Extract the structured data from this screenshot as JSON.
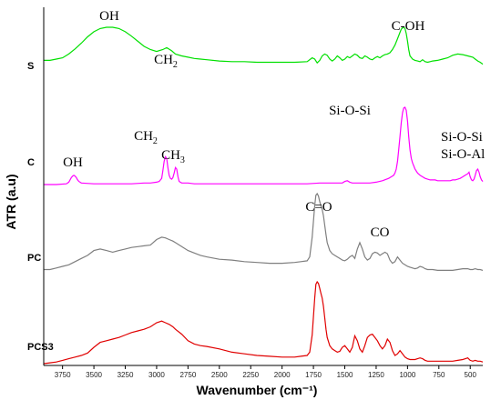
{
  "chart_data": {
    "type": "line",
    "title": "",
    "xlabel": "Wavenumber (cm⁻¹)",
    "ylabel": "ATR (a.u)",
    "x_reversed": true,
    "xlim": [
      3900,
      400
    ],
    "xticks": [
      3750,
      3500,
      3250,
      3000,
      2750,
      2500,
      2250,
      2000,
      1750,
      1500,
      1250,
      1000,
      750,
      500
    ],
    "grid": false,
    "series": [
      {
        "name": "S",
        "color": "#00e000",
        "x": [
          3900,
          3850,
          3800,
          3750,
          3700,
          3650,
          3600,
          3550,
          3500,
          3450,
          3400,
          3350,
          3300,
          3250,
          3200,
          3150,
          3100,
          3050,
          3000,
          2950,
          2920,
          2880,
          2850,
          2800,
          2750,
          2700,
          2650,
          2600,
          2500,
          2400,
          2300,
          2200,
          2100,
          2000,
          1900,
          1800,
          1760,
          1740,
          1720,
          1700,
          1680,
          1660,
          1640,
          1620,
          1600,
          1580,
          1560,
          1540,
          1520,
          1500,
          1480,
          1460,
          1440,
          1420,
          1400,
          1380,
          1360,
          1340,
          1320,
          1300,
          1280,
          1260,
          1240,
          1220,
          1200,
          1180,
          1160,
          1140,
          1120,
          1100,
          1080,
          1060,
          1050,
          1040,
          1030,
          1020,
          1010,
          1000,
          990,
          980,
          960,
          940,
          920,
          900,
          880,
          860,
          840,
          820,
          800,
          760,
          720,
          680,
          640,
          600,
          560,
          520,
          480,
          460,
          440,
          420,
          400
        ],
        "values": [
          0.48,
          0.48,
          0.5,
          0.52,
          0.58,
          0.66,
          0.75,
          0.85,
          0.93,
          0.98,
          1.0,
          1.0,
          0.98,
          0.93,
          0.86,
          0.78,
          0.7,
          0.65,
          0.62,
          0.65,
          0.68,
          0.63,
          0.58,
          0.55,
          0.53,
          0.51,
          0.5,
          0.49,
          0.47,
          0.46,
          0.46,
          0.45,
          0.45,
          0.45,
          0.45,
          0.46,
          0.52,
          0.5,
          0.44,
          0.48,
          0.55,
          0.58,
          0.56,
          0.5,
          0.47,
          0.5,
          0.55,
          0.52,
          0.48,
          0.5,
          0.54,
          0.52,
          0.55,
          0.58,
          0.56,
          0.52,
          0.51,
          0.55,
          0.53,
          0.5,
          0.49,
          0.52,
          0.54,
          0.52,
          0.55,
          0.57,
          0.58,
          0.6,
          0.65,
          0.72,
          0.82,
          0.92,
          0.97,
          0.99,
          1.0,
          0.98,
          0.9,
          0.78,
          0.65,
          0.55,
          0.5,
          0.48,
          0.47,
          0.46,
          0.49,
          0.46,
          0.45,
          0.46,
          0.47,
          0.48,
          0.5,
          0.52,
          0.56,
          0.58,
          0.57,
          0.55,
          0.53,
          0.5,
          0.47,
          0.45,
          0.42
        ]
      },
      {
        "name": "C",
        "color": "#ff00ff",
        "x": [
          3900,
          3800,
          3720,
          3700,
          3690,
          3680,
          3670,
          3660,
          3650,
          3640,
          3630,
          3620,
          3600,
          3500,
          3400,
          3300,
          3200,
          3100,
          3050,
          3000,
          2980,
          2960,
          2950,
          2940,
          2930,
          2920,
          2910,
          2900,
          2890,
          2880,
          2870,
          2860,
          2850,
          2840,
          2830,
          2820,
          2800,
          2750,
          2700,
          2600,
          2500,
          2400,
          2300,
          2200,
          2100,
          2000,
          1900,
          1800,
          1700,
          1600,
          1520,
          1500,
          1480,
          1460,
          1440,
          1400,
          1300,
          1250,
          1200,
          1150,
          1130,
          1110,
          1100,
          1090,
          1080,
          1070,
          1060,
          1050,
          1040,
          1030,
          1020,
          1010,
          1000,
          990,
          980,
          970,
          960,
          950,
          940,
          920,
          900,
          880,
          860,
          840,
          820,
          800,
          780,
          760,
          740,
          720,
          700,
          680,
          660,
          640,
          620,
          600,
          580,
          560,
          540,
          520,
          510,
          500,
          490,
          480,
          470,
          460,
          450,
          440,
          430,
          420,
          410,
          400
        ],
        "values": [
          0.0,
          0.0,
          0.01,
          0.03,
          0.06,
          0.09,
          0.11,
          0.12,
          0.11,
          0.09,
          0.06,
          0.04,
          0.02,
          0.01,
          0.01,
          0.01,
          0.01,
          0.02,
          0.02,
          0.03,
          0.04,
          0.08,
          0.18,
          0.3,
          0.36,
          0.34,
          0.22,
          0.12,
          0.08,
          0.07,
          0.09,
          0.15,
          0.22,
          0.2,
          0.1,
          0.04,
          0.02,
          0.02,
          0.01,
          0.01,
          0.01,
          0.01,
          0.01,
          0.01,
          0.01,
          0.01,
          0.01,
          0.01,
          0.02,
          0.02,
          0.02,
          0.04,
          0.05,
          0.03,
          0.02,
          0.02,
          0.02,
          0.03,
          0.05,
          0.08,
          0.1,
          0.12,
          0.15,
          0.2,
          0.3,
          0.45,
          0.62,
          0.8,
          0.93,
          0.99,
          1.0,
          0.96,
          0.82,
          0.62,
          0.45,
          0.34,
          0.28,
          0.24,
          0.2,
          0.15,
          0.12,
          0.1,
          0.08,
          0.07,
          0.06,
          0.06,
          0.06,
          0.05,
          0.05,
          0.05,
          0.05,
          0.05,
          0.05,
          0.06,
          0.06,
          0.07,
          0.08,
          0.1,
          0.12,
          0.14,
          0.16,
          0.1,
          0.06,
          0.05,
          0.07,
          0.12,
          0.18,
          0.2,
          0.16,
          0.1,
          0.06,
          0.04
        ]
      },
      {
        "name": "PC",
        "color": "#7f7f7f",
        "x": [
          3900,
          3850,
          3800,
          3750,
          3700,
          3650,
          3600,
          3550,
          3500,
          3450,
          3400,
          3350,
          3300,
          3250,
          3200,
          3150,
          3100,
          3050,
          3000,
          2960,
          2930,
          2900,
          2870,
          2850,
          2800,
          2750,
          2700,
          2650,
          2600,
          2500,
          2400,
          2300,
          2200,
          2100,
          2000,
          1900,
          1850,
          1800,
          1780,
          1760,
          1740,
          1730,
          1720,
          1710,
          1700,
          1690,
          1680,
          1670,
          1660,
          1650,
          1640,
          1620,
          1600,
          1580,
          1560,
          1540,
          1520,
          1500,
          1480,
          1460,
          1440,
          1420,
          1400,
          1380,
          1360,
          1340,
          1320,
          1300,
          1280,
          1260,
          1240,
          1220,
          1200,
          1180,
          1160,
          1140,
          1120,
          1100,
          1080,
          1060,
          1040,
          1020,
          1000,
          980,
          960,
          940,
          920,
          900,
          880,
          860,
          840,
          820,
          800,
          760,
          720,
          680,
          640,
          600,
          560,
          520,
          500,
          480,
          460,
          440,
          420,
          400
        ],
        "values": [
          0.04,
          0.04,
          0.06,
          0.08,
          0.1,
          0.14,
          0.18,
          0.22,
          0.28,
          0.3,
          0.28,
          0.26,
          0.28,
          0.3,
          0.32,
          0.33,
          0.34,
          0.35,
          0.42,
          0.45,
          0.44,
          0.42,
          0.4,
          0.38,
          0.33,
          0.28,
          0.25,
          0.22,
          0.2,
          0.17,
          0.16,
          0.14,
          0.13,
          0.12,
          0.12,
          0.13,
          0.14,
          0.15,
          0.2,
          0.45,
          0.85,
          0.98,
          1.0,
          0.97,
          0.9,
          0.85,
          0.8,
          0.72,
          0.6,
          0.48,
          0.38,
          0.28,
          0.24,
          0.22,
          0.2,
          0.18,
          0.16,
          0.15,
          0.17,
          0.2,
          0.22,
          0.18,
          0.3,
          0.38,
          0.3,
          0.2,
          0.16,
          0.18,
          0.24,
          0.26,
          0.25,
          0.22,
          0.24,
          0.26,
          0.24,
          0.16,
          0.12,
          0.14,
          0.2,
          0.16,
          0.12,
          0.1,
          0.08,
          0.07,
          0.06,
          0.05,
          0.06,
          0.08,
          0.07,
          0.05,
          0.04,
          0.04,
          0.04,
          0.03,
          0.03,
          0.03,
          0.03,
          0.04,
          0.05,
          0.05,
          0.04,
          0.04,
          0.05,
          0.04,
          0.04,
          0.03
        ]
      },
      {
        "name": "PCS3",
        "color": "#e00000",
        "x": [
          3900,
          3850,
          3800,
          3750,
          3700,
          3650,
          3600,
          3550,
          3500,
          3450,
          3400,
          3350,
          3300,
          3250,
          3200,
          3150,
          3100,
          3050,
          3000,
          2960,
          2930,
          2900,
          2870,
          2850,
          2800,
          2750,
          2700,
          2650,
          2600,
          2500,
          2400,
          2300,
          2200,
          2100,
          2000,
          1900,
          1850,
          1800,
          1780,
          1760,
          1740,
          1730,
          1720,
          1710,
          1700,
          1690,
          1680,
          1670,
          1660,
          1650,
          1640,
          1620,
          1600,
          1580,
          1560,
          1540,
          1520,
          1500,
          1480,
          1460,
          1440,
          1420,
          1400,
          1380,
          1360,
          1340,
          1320,
          1300,
          1280,
          1260,
          1240,
          1220,
          1200,
          1180,
          1160,
          1140,
          1120,
          1100,
          1080,
          1060,
          1040,
          1020,
          1000,
          980,
          960,
          940,
          920,
          900,
          880,
          860,
          840,
          820,
          800,
          760,
          720,
          680,
          640,
          600,
          560,
          520,
          500,
          480,
          460,
          440,
          420,
          400
        ],
        "values": [
          0.0,
          0.01,
          0.02,
          0.04,
          0.06,
          0.08,
          0.1,
          0.13,
          0.2,
          0.26,
          0.28,
          0.3,
          0.32,
          0.35,
          0.38,
          0.4,
          0.42,
          0.45,
          0.5,
          0.52,
          0.5,
          0.48,
          0.45,
          0.42,
          0.36,
          0.28,
          0.24,
          0.22,
          0.21,
          0.18,
          0.14,
          0.12,
          0.1,
          0.09,
          0.08,
          0.08,
          0.09,
          0.1,
          0.14,
          0.35,
          0.8,
          0.97,
          1.0,
          0.98,
          0.92,
          0.86,
          0.8,
          0.7,
          0.56,
          0.42,
          0.32,
          0.22,
          0.18,
          0.16,
          0.14,
          0.15,
          0.2,
          0.22,
          0.18,
          0.14,
          0.2,
          0.34,
          0.28,
          0.18,
          0.14,
          0.22,
          0.32,
          0.35,
          0.36,
          0.32,
          0.28,
          0.22,
          0.18,
          0.22,
          0.3,
          0.26,
          0.16,
          0.1,
          0.12,
          0.16,
          0.12,
          0.08,
          0.06,
          0.05,
          0.05,
          0.05,
          0.06,
          0.07,
          0.06,
          0.04,
          0.03,
          0.03,
          0.03,
          0.03,
          0.03,
          0.03,
          0.03,
          0.04,
          0.05,
          0.07,
          0.04,
          0.03,
          0.04,
          0.03,
          0.03,
          0.02
        ]
      }
    ],
    "annotations": [
      {
        "series": "S",
        "text": "OH",
        "sub": ""
      },
      {
        "series": "S",
        "text": "CH",
        "sub": "2"
      },
      {
        "series": "S",
        "text": "C-OH",
        "sub": ""
      },
      {
        "series": "C",
        "text": "OH",
        "sub": ""
      },
      {
        "series": "C",
        "text": "CH",
        "sub": "2"
      },
      {
        "series": "C",
        "text": "CH",
        "sub": "3"
      },
      {
        "series": "C",
        "text": "Si-O-Si",
        "sub": ""
      },
      {
        "series": "C",
        "text": "Si-O-Si",
        "sub": ""
      },
      {
        "series": "C",
        "text": "Si-O-Al",
        "sub": ""
      },
      {
        "series": "PC",
        "text": "C=O",
        "sub": ""
      },
      {
        "series": "PC",
        "text": "CO",
        "sub": ""
      }
    ]
  }
}
